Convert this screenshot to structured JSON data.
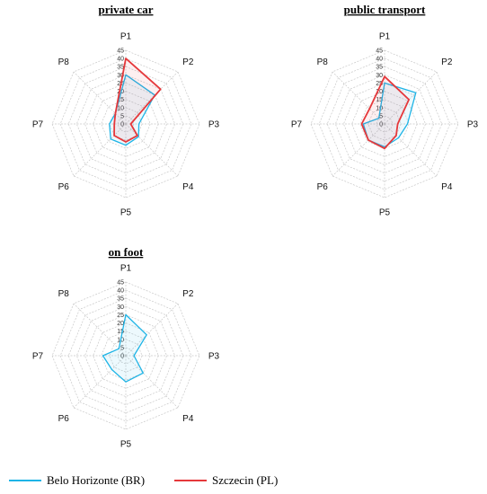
{
  "chart_data": [
    {
      "type": "radar",
      "title": "private car",
      "axes": [
        "P1",
        "P2",
        "P3",
        "P4",
        "P5",
        "P6",
        "P7",
        "P8"
      ],
      "ticks": [
        0,
        5,
        10,
        15,
        20,
        25,
        30,
        35,
        40,
        45
      ],
      "rmax": 45,
      "series": [
        {
          "name": "Belo Horizonte (BR)",
          "values": [
            30,
            25,
            8,
            11,
            13,
            13,
            10,
            9
          ],
          "color": "#1eb4e6"
        },
        {
          "name": "Szczecin (PL)",
          "values": [
            40,
            30,
            3,
            10,
            11,
            10,
            7,
            9
          ],
          "color": "#e5383b"
        }
      ]
    },
    {
      "type": "radar",
      "title": "public transport",
      "axes": [
        "P1",
        "P2",
        "P3",
        "P4",
        "P5",
        "P6",
        "P7",
        "P8"
      ],
      "ticks": [
        0,
        5,
        10,
        15,
        20,
        25,
        30,
        35,
        40,
        45
      ],
      "rmax": 45,
      "series": [
        {
          "name": "Belo Horizonte (BR)",
          "values": [
            25,
            27,
            14,
            12,
            14,
            14,
            13,
            5
          ],
          "color": "#1eb4e6"
        },
        {
          "name": "Szczecin (PL)",
          "values": [
            29,
            21,
            8,
            10,
            15,
            14,
            14,
            13
          ],
          "color": "#e5383b"
        }
      ]
    },
    {
      "type": "radar",
      "title": "on foot",
      "axes": [
        "P1",
        "P2",
        "P3",
        "P4",
        "P5",
        "P6",
        "P7",
        "P8"
      ],
      "ticks": [
        0,
        5,
        10,
        15,
        20,
        25,
        30,
        35,
        40,
        45
      ],
      "rmax": 45,
      "series": [
        {
          "name": "Belo Horizonte (BR)",
          "values": [
            25,
            18,
            5,
            15,
            16,
            12,
            14,
            6
          ],
          "color": "#1eb4e6"
        }
      ]
    }
  ],
  "legend": {
    "items": [
      {
        "label": "Belo Horizonte (BR)",
        "color": "#1eb4e6"
      },
      {
        "label": "Szczecin (PL)",
        "color": "#e5383b"
      }
    ]
  }
}
